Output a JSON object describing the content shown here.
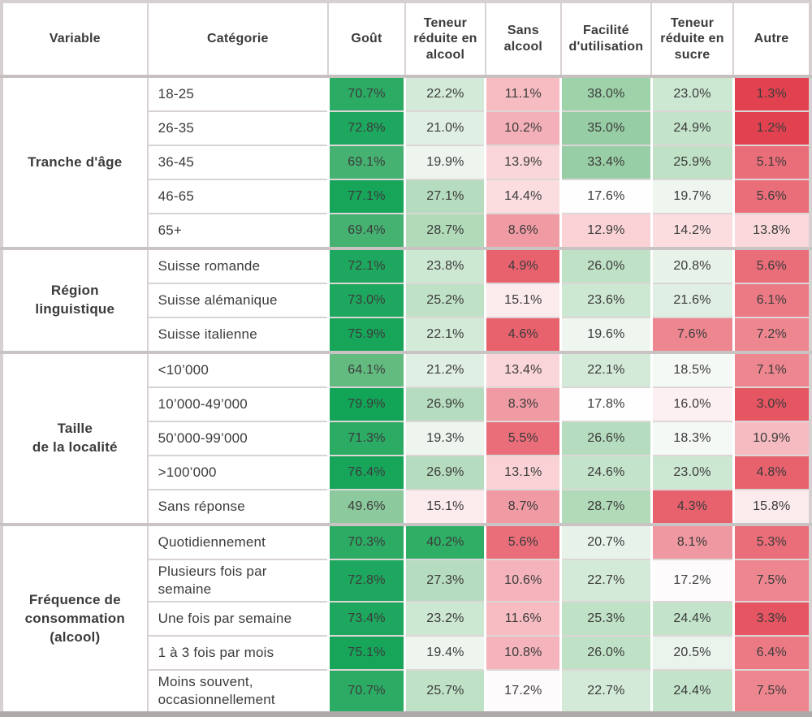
{
  "chart_data": {
    "type": "table",
    "subtype": "heatmap",
    "columns": [
      "Variable",
      "Catégorie",
      "Goût",
      "Teneur réduite en alcool",
      "Sans alcool",
      "Facilité d'utilisation",
      "Teneur réduite en sucre",
      "Autre"
    ],
    "value_columns": [
      "Goût",
      "Teneur réduite en alcool",
      "Sans alcool",
      "Facilité d'utilisation",
      "Teneur réduite en sucre",
      "Autre"
    ],
    "unit": "%",
    "color_scale": {
      "low": "#e2424f",
      "mid": "#ffffff",
      "high": "#12a457",
      "mid_value_approx": 17.5
    },
    "groups": [
      {
        "variable": "Tranche d'âge",
        "rows": [
          {
            "category": "18-25",
            "values": [
              70.7,
              22.2,
              11.1,
              38.0,
              23.0,
              1.3
            ],
            "colors": [
              "#2cab64",
              "#d4ead8",
              "#f7bcc2",
              "#9ed2a9",
              "#cce7d2",
              "#e2424f"
            ]
          },
          {
            "category": "26-35",
            "values": [
              72.8,
              21.0,
              10.2,
              35.0,
              24.9,
              1.2
            ],
            "colors": [
              "#1ea75e",
              "#e0efe3",
              "#f4b0b8",
              "#96cda4",
              "#c3e3ca",
              "#e2424f"
            ]
          },
          {
            "category": "36-45",
            "values": [
              69.1,
              19.9,
              13.9,
              33.4,
              25.9,
              5.1
            ],
            "colors": [
              "#45b271",
              "#edf5ee",
              "#fad5d9",
              "#98cea5",
              "#bfe1c6",
              "#ea6e79"
            ]
          },
          {
            "category": "46-65",
            "values": [
              77.1,
              27.1,
              14.4,
              17.6,
              19.7,
              5.6
            ],
            "colors": [
              "#17a55a",
              "#b5dcbe",
              "#fbdde0",
              "#fefefe",
              "#eff6f0",
              "#ea6e79"
            ]
          },
          {
            "category": "65+",
            "values": [
              69.4,
              28.7,
              8.6,
              12.9,
              14.2,
              13.8
            ],
            "colors": [
              "#45b271",
              "#b0dab8",
              "#f09ba4",
              "#fad2d6",
              "#fbdde0",
              "#fad8db"
            ]
          }
        ]
      },
      {
        "variable": "Région\nlinguistique",
        "rows": [
          {
            "category": "Suisse romande",
            "values": [
              72.1,
              23.8,
              4.9,
              26.0,
              20.8,
              5.6
            ],
            "colors": [
              "#1ea75e",
              "#cce7d2",
              "#e8626e",
              "#bfe1c6",
              "#e7f2e9",
              "#ea6e79"
            ]
          },
          {
            "category": "Suisse alémanique",
            "values": [
              73.0,
              25.2,
              15.1,
              23.6,
              21.6,
              6.1
            ],
            "colors": [
              "#1ea75e",
              "#bfe1c6",
              "#fcebed",
              "#cce7d2",
              "#e0efe3",
              "#ec7a85"
            ]
          },
          {
            "category": "Suisse italienne",
            "values": [
              75.9,
              22.1,
              4.6,
              19.6,
              7.6,
              7.2
            ],
            "colors": [
              "#17a55a",
              "#d4ead8",
              "#e8626e",
              "#eff6f0",
              "#ee8690",
              "#ee8690"
            ]
          }
        ]
      },
      {
        "variable": "Taille\nde la localité",
        "rows": [
          {
            "category": "<10’000",
            "values": [
              64.1,
              21.2,
              13.4,
              22.1,
              18.5,
              7.1
            ],
            "colors": [
              "#63bb7f",
              "#e0efe3",
              "#fad5d9",
              "#d4ead8",
              "#f4f9f5",
              "#ee8690"
            ]
          },
          {
            "category": "10’000-49’000",
            "values": [
              79.9,
              26.9,
              8.3,
              17.8,
              16.0,
              3.0
            ],
            "colors": [
              "#12a457",
              "#b5dcbe",
              "#f09ba4",
              "#fefefe",
              "#fdf0f2",
              "#e55562"
            ]
          },
          {
            "category": "50’000-99’000",
            "values": [
              71.3,
              19.3,
              5.5,
              26.6,
              18.3,
              10.9
            ],
            "colors": [
              "#2cab64",
              "#edf5ee",
              "#ea6e79",
              "#b5dcbe",
              "#f4f9f5",
              "#f6bac1"
            ]
          },
          {
            "category": ">100’000",
            "values": [
              76.4,
              26.9,
              13.1,
              24.6,
              23.0,
              4.8
            ],
            "colors": [
              "#17a55a",
              "#b5dcbe",
              "#fad2d6",
              "#c3e3ca",
              "#cce7d2",
              "#e8626e"
            ]
          },
          {
            "category": "Sans réponse",
            "values": [
              49.6,
              15.1,
              8.7,
              28.7,
              4.3,
              15.8
            ],
            "colors": [
              "#8cc99c",
              "#fcebed",
              "#f09ba4",
              "#b0dab8",
              "#e8626e",
              "#fcebed"
            ]
          }
        ]
      },
      {
        "variable": "Fréquence de\nconsommation\n(alcool)",
        "rows": [
          {
            "category": "Quotidiennement",
            "values": [
              70.3,
              40.2,
              5.6,
              20.7,
              8.1,
              5.3
            ],
            "colors": [
              "#2cab64",
              "#2fae66",
              "#ea6e79",
              "#e7f2e9",
              "#ef98a1",
              "#ea6e79"
            ]
          },
          {
            "category": "Plusieurs fois par\nsemaine",
            "values": [
              72.8,
              27.3,
              10.6,
              22.7,
              17.2,
              7.5
            ],
            "colors": [
              "#1ea75e",
              "#b5dcbe",
              "#f5b4bc",
              "#d4ead8",
              "#fdfbfc",
              "#ee8690"
            ]
          },
          {
            "category": "Une fois par semaine",
            "values": [
              73.4,
              23.2,
              11.6,
              25.3,
              24.4,
              3.3
            ],
            "colors": [
              "#1ea75e",
              "#cce7d2",
              "#f7bcc2",
              "#bfe1c6",
              "#c3e3ca",
              "#e55562"
            ]
          },
          {
            "category": "1 à 3 fois par mois",
            "values": [
              75.1,
              19.4,
              10.8,
              26.0,
              20.5,
              6.4
            ],
            "colors": [
              "#17a55a",
              "#edf5ee",
              "#f5b4bc",
              "#bfe1c6",
              "#eaf4ec",
              "#ec7a85"
            ]
          },
          {
            "category": "Moins souvent,\noccasionnellement",
            "values": [
              70.7,
              25.7,
              17.2,
              22.7,
              24.4,
              7.5
            ],
            "colors": [
              "#2cab64",
              "#bfe1c6",
              "#fdfbfc",
              "#d4ead8",
              "#c3e3ca",
              "#ee8690"
            ]
          }
        ]
      }
    ]
  }
}
